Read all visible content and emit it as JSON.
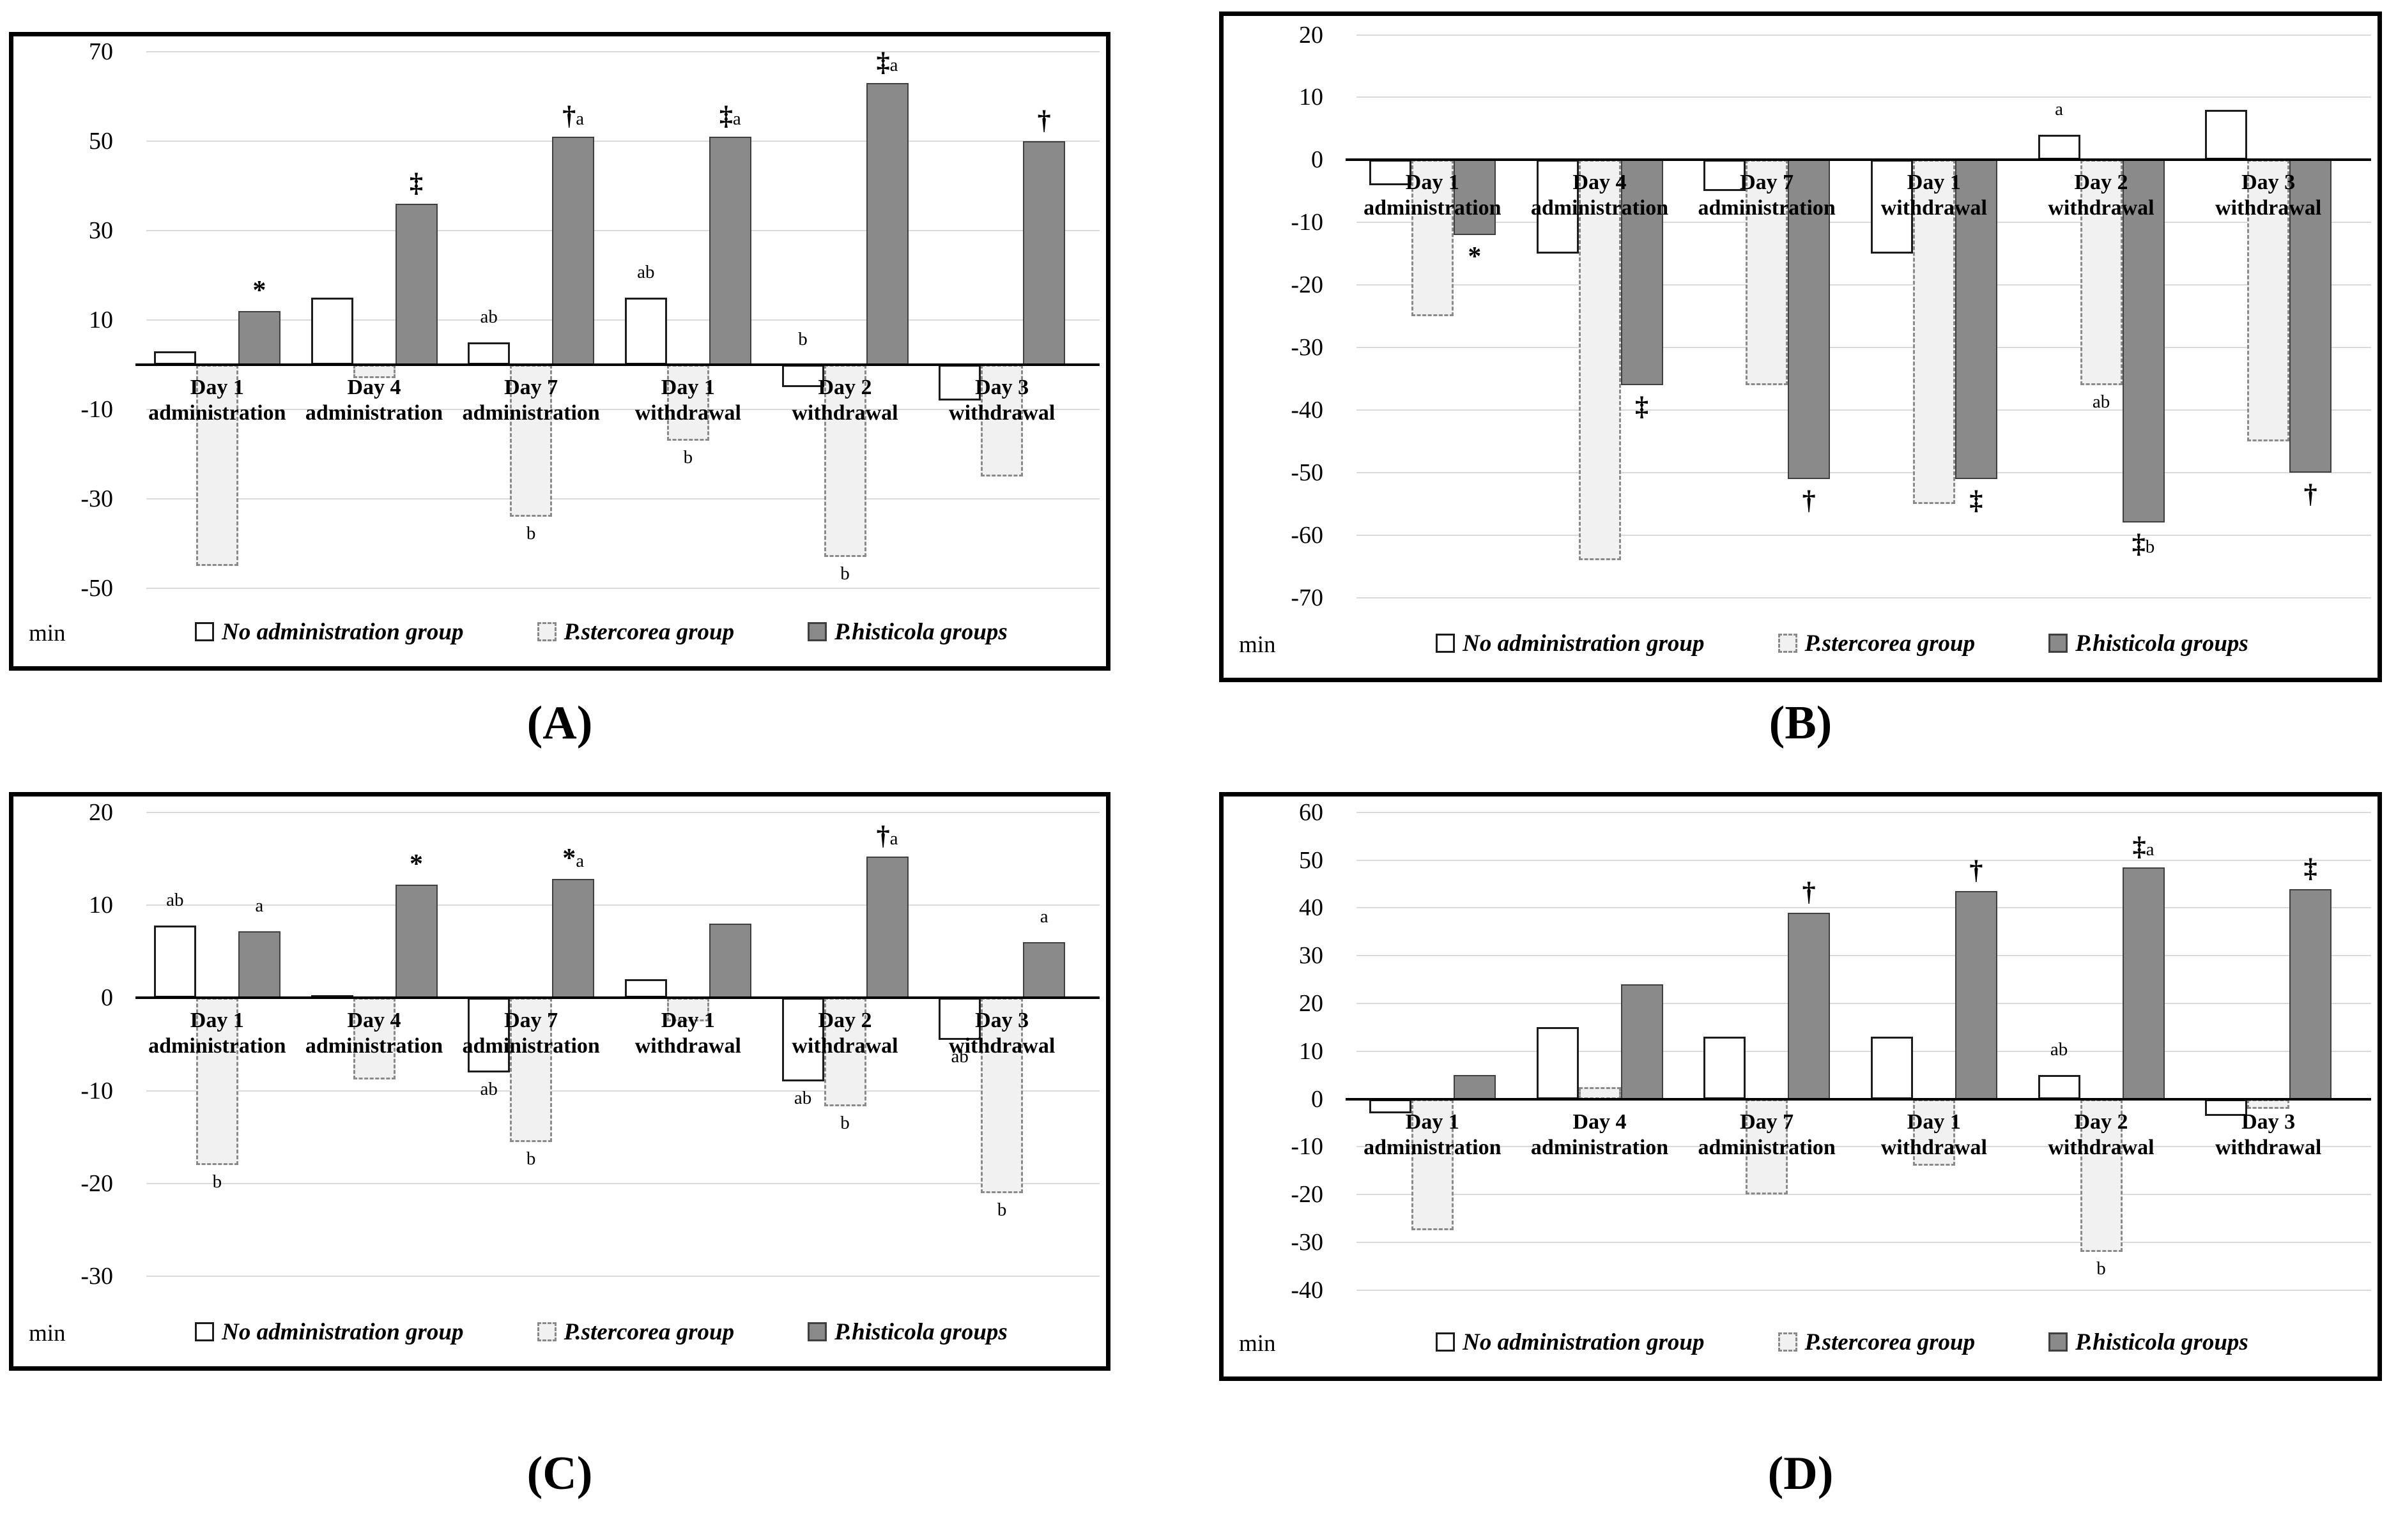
{
  "figure": {
    "unit_label": "min"
  },
  "colors": {
    "no_admin_fill": "#ffffff",
    "no_admin_border": "#1c1c1c",
    "stercorea_fill": "#f1f1f1",
    "stercorea_border": "#8a8a8a",
    "histicola_fill": "#8a8a8a",
    "histicola_border": "#3f3f3f",
    "gridline": "#dadada",
    "axis": "#000000"
  },
  "chart_data": {
    "type": "bar",
    "legend_position": "bottom-inside",
    "categories": [
      [
        "Day 1",
        "administration"
      ],
      [
        "Day 4",
        "administration"
      ],
      [
        "Day 7",
        "administration"
      ],
      [
        "Day 1",
        "withdrawal"
      ],
      [
        "Day 2",
        "withdrawal"
      ],
      [
        "Day 3",
        "withdrawal"
      ]
    ],
    "series_keys": [
      "no_admin",
      "stercorea",
      "histicola"
    ],
    "series_names": [
      "No administration group",
      "P.stercorea group",
      "P.histicola groups"
    ],
    "panels": [
      {
        "id": "A",
        "caption": "(A)",
        "ylabel": "min",
        "ylim": [
          -53,
          72
        ],
        "yticks": [
          70,
          50,
          30,
          10,
          -10,
          -30,
          -50
        ],
        "series": [
          {
            "key": "no_admin",
            "values": [
              3,
              15,
              5,
              15,
              -5,
              -8
            ],
            "annotations": [
              null,
              null,
              {
                "text": "ab",
                "pos": "above"
              },
              {
                "text": "ab",
                "pos": "above"
              },
              {
                "text": "b",
                "pos": "above"
              },
              null
            ]
          },
          {
            "key": "stercorea",
            "values": [
              -45,
              -3,
              -34,
              -17,
              -43,
              -25
            ],
            "annotations": [
              null,
              null,
              {
                "text": "b",
                "pos": "below"
              },
              {
                "text": "b",
                "pos": "below"
              },
              {
                "text": "b",
                "pos": "below"
              },
              null
            ]
          },
          {
            "key": "histicola",
            "values": [
              12,
              36,
              51,
              51,
              63,
              50
            ],
            "annotations": [
              {
                "text": "*",
                "pos": "above"
              },
              {
                "text": "‡",
                "pos": "above"
              },
              {
                "text": "†a",
                "pos": "above"
              },
              {
                "text": "‡a",
                "pos": "above"
              },
              {
                "text": "‡a",
                "pos": "above"
              },
              {
                "text": "†",
                "pos": "above"
              }
            ]
          }
        ]
      },
      {
        "id": "B",
        "caption": "(B)",
        "ylabel": "min",
        "ylim": [
          -73,
          22
        ],
        "yticks": [
          20,
          10,
          0,
          -10,
          -20,
          -30,
          -40,
          -50,
          -60,
          -70
        ],
        "series": [
          {
            "key": "no_admin",
            "values": [
              -4,
              -15,
              -5,
              -15,
              4,
              8
            ],
            "annotations": [
              null,
              null,
              null,
              null,
              {
                "text": "a",
                "pos": "above"
              },
              null
            ]
          },
          {
            "key": "stercorea",
            "values": [
              -25,
              -64,
              -36,
              -55,
              -36,
              -45
            ],
            "annotations": [
              null,
              null,
              null,
              null,
              {
                "text": "ab",
                "pos": "below"
              },
              null
            ]
          },
          {
            "key": "histicola",
            "values": [
              -12,
              -36,
              -51,
              -51,
              -58,
              -50
            ],
            "annotations": [
              {
                "text": "*",
                "pos": "below"
              },
              {
                "text": "‡",
                "pos": "below"
              },
              {
                "text": "†",
                "pos": "below"
              },
              {
                "text": "‡",
                "pos": "below"
              },
              {
                "text": "‡b",
                "pos": "below"
              },
              {
                "text": "†",
                "pos": "below"
              }
            ]
          }
        ]
      },
      {
        "id": "C",
        "caption": "(C)",
        "ylabel": "min",
        "ylim": [
          -33,
          21
        ],
        "yticks": [
          20,
          10,
          0,
          -10,
          -20,
          -30
        ],
        "series": [
          {
            "key": "no_admin",
            "values": [
              7.8,
              0.3,
              -8,
              2,
              -9,
              -4.5
            ],
            "annotations": [
              {
                "text": "ab",
                "pos": "above"
              },
              null,
              {
                "text": "ab",
                "pos": "below"
              },
              null,
              {
                "text": "ab",
                "pos": "below"
              },
              {
                "text": "ab",
                "pos": "below"
              }
            ]
          },
          {
            "key": "stercorea",
            "values": [
              -18,
              -8.8,
              -15.5,
              -2.5,
              -11.7,
              -21
            ],
            "annotations": [
              {
                "text": "b",
                "pos": "below"
              },
              null,
              {
                "text": "b",
                "pos": "below"
              },
              null,
              {
                "text": "b",
                "pos": "below"
              },
              {
                "text": "b",
                "pos": "below"
              }
            ]
          },
          {
            "key": "histicola",
            "values": [
              7.2,
              12.2,
              12.8,
              8,
              15.2,
              6
            ],
            "annotations": [
              {
                "text": "a",
                "pos": "above"
              },
              {
                "text": "*",
                "pos": "above"
              },
              {
                "text": "*a",
                "pos": "above"
              },
              null,
              {
                "text": "†a",
                "pos": "above"
              },
              {
                "text": "a",
                "pos": "above"
              }
            ]
          }
        ]
      },
      {
        "id": "D",
        "caption": "(D)",
        "ylabel": "min",
        "ylim": [
          -45,
          62
        ],
        "yticks": [
          60,
          50,
          40,
          30,
          20,
          10,
          0,
          -10,
          -20,
          -30,
          -40
        ],
        "series": [
          {
            "key": "no_admin",
            "values": [
              -3,
              15,
              13,
              13,
              5,
              -3.5
            ],
            "annotations": [
              null,
              null,
              null,
              null,
              {
                "text": "ab",
                "pos": "above"
              },
              null
            ]
          },
          {
            "key": "stercorea",
            "values": [
              -27.5,
              2.5,
              -20,
              -14,
              -32,
              -2
            ],
            "annotations": [
              null,
              null,
              null,
              null,
              {
                "text": "b",
                "pos": "below"
              },
              null
            ]
          },
          {
            "key": "histicola",
            "values": [
              5,
              24,
              39,
              43.5,
              48.5,
              44
            ],
            "annotations": [
              null,
              null,
              {
                "text": "†",
                "pos": "above"
              },
              {
                "text": "†",
                "pos": "above"
              },
              {
                "text": "‡a",
                "pos": "above"
              },
              {
                "text": "‡",
                "pos": "above"
              }
            ]
          }
        ]
      }
    ]
  }
}
